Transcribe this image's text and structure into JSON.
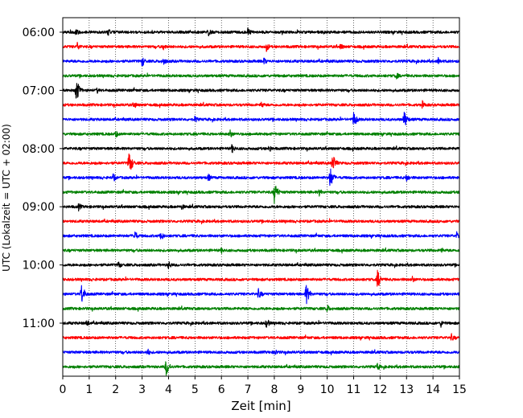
{
  "chart_data": {
    "type": "line",
    "xlabel": "Zeit  [min]",
    "ylabel": "UTC (Lokalzeit = UTC + 02:00)",
    "xlim": [
      0,
      15
    ],
    "x_ticks": [
      "0",
      "1",
      "2",
      "3",
      "4",
      "5",
      "6",
      "7",
      "8",
      "9",
      "10",
      "11",
      "12",
      "13",
      "14",
      "15"
    ],
    "y_ticks": [
      "06:00",
      "07:00",
      "08:00",
      "09:00",
      "10:00",
      "11:00"
    ],
    "grid": "vertical-dotted",
    "trace_colors": [
      "#000000",
      "#ff0000",
      "#0000ff",
      "#008000"
    ],
    "traces_count_note": "24 traces of 15 min each, 06:00 to 11:45",
    "traces": [
      {
        "start": "06:00",
        "color": "#000000",
        "events": [
          [
            0.5,
            0.35
          ],
          [
            1.7,
            0.3
          ],
          [
            5.5,
            0.35
          ],
          [
            7.0,
            0.35
          ]
        ]
      },
      {
        "start": "06:15",
        "color": "#ff0000",
        "events": [
          [
            0.55,
            0.35
          ],
          [
            3.8,
            0.3
          ],
          [
            7.7,
            0.35
          ],
          [
            10.5,
            0.3
          ]
        ]
      },
      {
        "start": "06:30",
        "color": "#0000ff",
        "events": [
          [
            3.0,
            0.4
          ],
          [
            3.8,
            0.35
          ],
          [
            7.6,
            0.3
          ],
          [
            14.2,
            0.3
          ]
        ]
      },
      {
        "start": "06:45",
        "color": "#008000",
        "events": [
          [
            12.6,
            0.3
          ]
        ]
      },
      {
        "start": "07:00",
        "color": "#000000",
        "events": [
          [
            0.5,
            0.9
          ],
          [
            1.3,
            0.25
          ]
        ]
      },
      {
        "start": "07:15",
        "color": "#ff0000",
        "events": [
          [
            2.7,
            0.3
          ],
          [
            7.5,
            0.3
          ],
          [
            13.6,
            0.3
          ]
        ]
      },
      {
        "start": "07:30",
        "color": "#0000ff",
        "events": [
          [
            11.0,
            0.6
          ],
          [
            12.9,
            0.7
          ],
          [
            5.0,
            0.3
          ]
        ]
      },
      {
        "start": "07:45",
        "color": "#008000",
        "events": [
          [
            2.0,
            0.3
          ],
          [
            6.3,
            0.4
          ]
        ]
      },
      {
        "start": "08:00",
        "color": "#000000",
        "events": [
          [
            6.4,
            0.35
          ],
          [
            7.8,
            0.3
          ]
        ]
      },
      {
        "start": "08:15",
        "color": "#ff0000",
        "events": [
          [
            2.5,
            0.9
          ],
          [
            10.2,
            0.7
          ]
        ]
      },
      {
        "start": "08:30",
        "color": "#0000ff",
        "events": [
          [
            10.1,
            0.8
          ],
          [
            1.9,
            0.35
          ],
          [
            5.5,
            0.3
          ],
          [
            13.0,
            0.35
          ]
        ]
      },
      {
        "start": "08:45",
        "color": "#008000",
        "events": [
          [
            8.0,
            0.8
          ],
          [
            9.7,
            0.3
          ]
        ]
      },
      {
        "start": "09:00",
        "color": "#000000",
        "events": [
          [
            0.6,
            0.3
          ],
          [
            4.5,
            0.25
          ]
        ]
      },
      {
        "start": "09:15",
        "color": "#ff0000",
        "events": []
      },
      {
        "start": "09:30",
        "color": "#0000ff",
        "events": [
          [
            2.7,
            0.45
          ],
          [
            3.7,
            0.4
          ],
          [
            14.9,
            0.3
          ]
        ]
      },
      {
        "start": "09:45",
        "color": "#008000",
        "events": [
          [
            6.0,
            0.25
          ],
          [
            14.3,
            0.25
          ]
        ]
      },
      {
        "start": "10:00",
        "color": "#000000",
        "events": [
          [
            2.1,
            0.3
          ],
          [
            4.0,
            0.35
          ]
        ]
      },
      {
        "start": "10:15",
        "color": "#ff0000",
        "events": [
          [
            11.9,
            0.7
          ],
          [
            13.2,
            0.3
          ]
        ]
      },
      {
        "start": "10:30",
        "color": "#0000ff",
        "events": [
          [
            0.7,
            0.8
          ],
          [
            7.4,
            0.4
          ],
          [
            9.2,
            0.8
          ]
        ]
      },
      {
        "start": "10:45",
        "color": "#008000",
        "events": [
          [
            10.0,
            0.3
          ]
        ]
      },
      {
        "start": "11:00",
        "color": "#000000",
        "events": [
          [
            0.9,
            0.3
          ],
          [
            7.7,
            0.4
          ],
          [
            14.3,
            0.3
          ]
        ]
      },
      {
        "start": "11:15",
        "color": "#ff0000",
        "events": [
          [
            14.7,
            0.3
          ]
        ]
      },
      {
        "start": "11:30",
        "color": "#0000ff",
        "events": [
          [
            3.2,
            0.3
          ],
          [
            8.0,
            0.3
          ]
        ]
      },
      {
        "start": "11:45",
        "color": "#008000",
        "events": [
          [
            3.9,
            0.7
          ],
          [
            11.9,
            0.3
          ]
        ]
      }
    ]
  }
}
